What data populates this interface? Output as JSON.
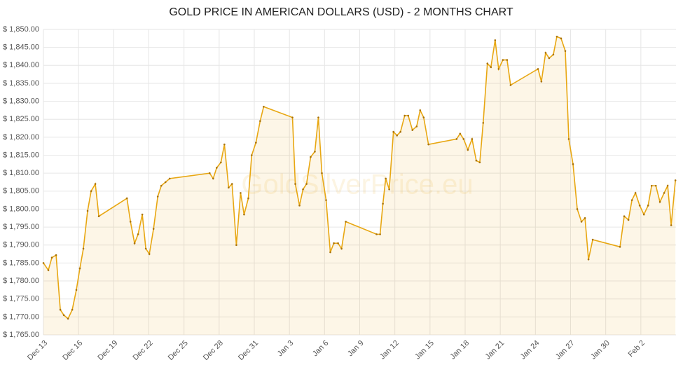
{
  "chart_data": {
    "type": "line",
    "title": "GOLD PRICE IN AMERICAN DOLLARS (USD) - 2 MONTHS CHART",
    "watermark": "GoldSilverPrice.eu",
    "x": [
      0,
      0.42,
      0.72,
      1.08,
      1.44,
      1.74,
      2.1,
      2.46,
      2.81,
      3.11,
      3.41,
      3.77,
      4.07,
      4.43,
      4.73,
      7.13,
      7.43,
      7.78,
      8.08,
      8.44,
      8.74,
      9.04,
      9.4,
      9.76,
      10.06,
      10.42,
      10.78,
      14.19,
      14.49,
      14.79,
      15.15,
      15.45,
      15.81,
      16.1,
      16.47,
      16.83,
      17.13,
      17.49,
      17.78,
      18.14,
      18.5,
      18.8,
      21.26,
      21.5,
      21.86,
      22.16,
      22.46,
      22.81,
      23.17,
      23.47,
      23.77,
      24.13,
      24.49,
      24.79,
      25.15,
      25.45,
      25.81,
      28.44,
      28.74,
      28.98,
      29.22,
      29.52,
      29.88,
      30.18,
      30.48,
      30.84,
      31.14,
      31.5,
      31.86,
      32.16,
      32.46,
      32.87,
      35.27,
      35.57,
      35.87,
      36.23,
      36.59,
      36.95,
      37.25,
      37.54,
      37.9,
      38.2,
      38.56,
      38.86,
      39.22,
      39.58,
      39.88,
      42.22,
      42.51,
      42.87,
      43.17,
      43.53,
      43.83,
      44.19,
      44.55,
      44.85,
      45.21,
      45.57,
      45.93,
      46.23,
      46.53,
      46.89,
      49.22,
      49.58,
      49.94,
      50.24,
      50.54,
      50.9,
      51.26,
      51.62,
      51.92,
      52.28,
      52.63,
      52.99,
      53.29,
      53.59,
      53.95
    ],
    "series": [
      {
        "name": "Gold price",
        "color": "#e8a712",
        "values": [
          1785,
          1783,
          1786.5,
          1787.2,
          1772,
          1770.5,
          1769.5,
          1772,
          1777.5,
          1783.5,
          1789,
          1799.5,
          1805,
          1807,
          1798,
          1803,
          1796.5,
          1790.5,
          1793,
          1798.5,
          1789,
          1787.5,
          1794.5,
          1803.5,
          1806.5,
          1807.5,
          1808.5,
          1810,
          1808.5,
          1811.5,
          1813,
          1818,
          1806,
          1807,
          1790,
          1804.5,
          1798.5,
          1803,
          1815,
          1818.5,
          1824.5,
          1828.5,
          1825.5,
          1807,
          1801,
          1805.5,
          1807,
          1814.5,
          1816,
          1825.5,
          1810,
          1802.5,
          1788,
          1790.5,
          1790.5,
          1789,
          1796.5,
          1793,
          1793,
          1801.5,
          1808.5,
          1805.5,
          1821.5,
          1820.5,
          1821.5,
          1826,
          1826,
          1822,
          1823,
          1827.5,
          1825.5,
          1818,
          1819.5,
          1821,
          1819.5,
          1816.5,
          1819.5,
          1813.5,
          1813,
          1824,
          1840.5,
          1839.5,
          1847,
          1839,
          1841.5,
          1841.5,
          1834.5,
          1839,
          1835.5,
          1843.5,
          1842,
          1843,
          1848,
          1847.5,
          1844,
          1819.5,
          1812.5,
          1800,
          1796.5,
          1797.5,
          1786,
          1791.5,
          1789.5,
          1798,
          1797,
          1802.5,
          1804.5,
          1801,
          1798.5,
          1801,
          1806.5,
          1806.5,
          1802,
          1804.5,
          1806.5,
          1795.5,
          1808
        ]
      }
    ],
    "xlim": [
      0,
      54
    ],
    "xticks": [
      {
        "value": 0,
        "label": "Dec 13"
      },
      {
        "value": 3,
        "label": "Dec 16"
      },
      {
        "value": 6,
        "label": "Dec 19"
      },
      {
        "value": 9,
        "label": "Dec 22"
      },
      {
        "value": 12,
        "label": "Dec 25"
      },
      {
        "value": 15,
        "label": "Dec 28"
      },
      {
        "value": 18,
        "label": "Dec 31"
      },
      {
        "value": 21,
        "label": "Jan 3"
      },
      {
        "value": 24,
        "label": "Jan 6"
      },
      {
        "value": 27,
        "label": "Jan 9"
      },
      {
        "value": 30,
        "label": "Jan 12"
      },
      {
        "value": 33,
        "label": "Jan 15"
      },
      {
        "value": 36,
        "label": "Jan 18"
      },
      {
        "value": 39,
        "label": "Jan 21"
      },
      {
        "value": 42,
        "label": "Jan 24"
      },
      {
        "value": 45,
        "label": "Jan 27"
      },
      {
        "value": 48,
        "label": "Jan 30"
      },
      {
        "value": 51,
        "label": "Feb 2"
      }
    ],
    "ylim": [
      1765,
      1850
    ],
    "yticks": [
      {
        "value": 1765,
        "label": "$ 1,765.00"
      },
      {
        "value": 1770,
        "label": "$ 1,770.00"
      },
      {
        "value": 1775,
        "label": "$ 1,775.00"
      },
      {
        "value": 1780,
        "label": "$ 1,780.00"
      },
      {
        "value": 1785,
        "label": "$ 1,785.00"
      },
      {
        "value": 1790,
        "label": "$ 1,790.00"
      },
      {
        "value": 1795,
        "label": "$ 1,795.00"
      },
      {
        "value": 1800,
        "label": "$ 1,800.00"
      },
      {
        "value": 1805,
        "label": "$ 1,805.00"
      },
      {
        "value": 1810,
        "label": "$ 1,810.00"
      },
      {
        "value": 1815,
        "label": "$ 1,815.00"
      },
      {
        "value": 1820,
        "label": "$ 1,820.00"
      },
      {
        "value": 1825,
        "label": "$ 1,825.00"
      },
      {
        "value": 1830,
        "label": "$ 1,830.00"
      },
      {
        "value": 1835,
        "label": "$ 1,835.00"
      },
      {
        "value": 1840,
        "label": "$ 1,840.00"
      },
      {
        "value": 1845,
        "label": "$ 1,845.00"
      },
      {
        "value": 1850,
        "label": "$ 1,850.00"
      }
    ],
    "grid": true
  }
}
